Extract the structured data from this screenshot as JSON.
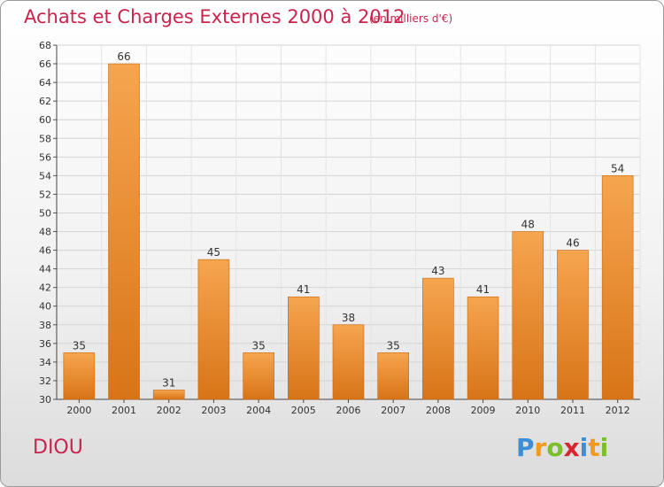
{
  "header": {
    "title": "Achats et Charges Externes 2000 à 2012",
    "unit": "(en milliers d'€)"
  },
  "commune": "DIOU",
  "brand": {
    "name": "Proxiti",
    "letters": [
      {
        "char": "P",
        "color": "#3b8fd6"
      },
      {
        "char": "r",
        "color": "#f29a1f"
      },
      {
        "char": "o",
        "color": "#7cbf2a"
      },
      {
        "char": "x",
        "color": "#d8262f"
      },
      {
        "char": "i",
        "color": "#3b8fd6"
      },
      {
        "char": "t",
        "color": "#f29a1f"
      },
      {
        "char": "i",
        "color": "#7cbf2a"
      }
    ]
  },
  "colors": {
    "accent": "#c8244e",
    "bar_light": "#f6a54f",
    "bar_dark": "#d87418",
    "bar_edge": "#c86610"
  },
  "chart_data": {
    "type": "bar",
    "categories": [
      "2000",
      "2001",
      "2002",
      "2003",
      "2004",
      "2005",
      "2006",
      "2007",
      "2008",
      "2009",
      "2010",
      "2011",
      "2012"
    ],
    "values": [
      35,
      66,
      31,
      45,
      35,
      41,
      38,
      35,
      43,
      41,
      48,
      46,
      54
    ],
    "ylim": [
      30,
      68
    ],
    "yticks": [
      30,
      32,
      34,
      36,
      38,
      40,
      42,
      44,
      46,
      48,
      50,
      52,
      54,
      56,
      58,
      60,
      62,
      64,
      66,
      68
    ],
    "grid": true,
    "xlabel": "",
    "ylabel": ""
  }
}
